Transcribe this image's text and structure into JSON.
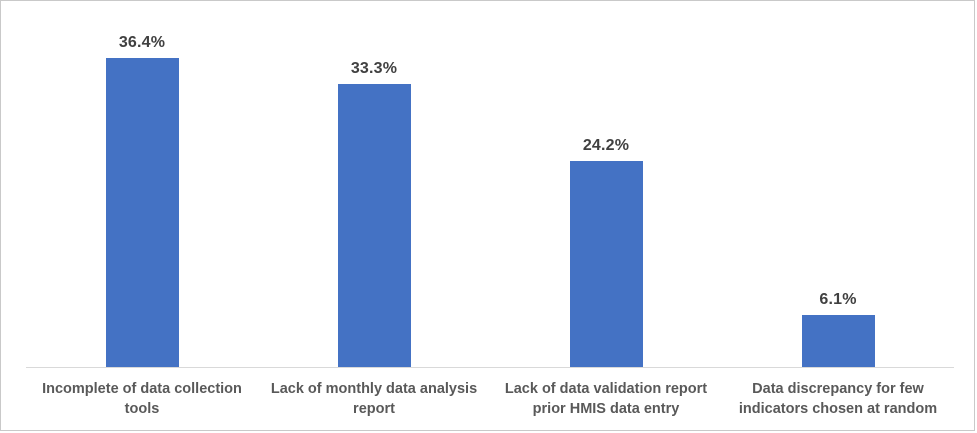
{
  "chart_data": {
    "type": "bar",
    "title": "",
    "xlabel": "",
    "ylabel": "",
    "categories": [
      "Incomplete of data collection tools",
      "Lack of monthly data analysis report",
      "Lack of data validation report prior HMIS data entry",
      "Data discrepancy for few indicators chosen at random"
    ],
    "values": [
      36.4,
      33.3,
      24.2,
      6.1
    ],
    "data_labels": [
      "36.4%",
      "33.3%",
      "24.2%",
      "6.1%"
    ],
    "ylim": [
      0,
      40
    ],
    "grid": false,
    "legend": false,
    "colors": {
      "bar": "#4472C4",
      "data_label": "#404040",
      "category_label": "#595959",
      "axis_line": "#d9d9d9",
      "frame_border": "#c9c9c9",
      "background": "#ffffff"
    }
  }
}
